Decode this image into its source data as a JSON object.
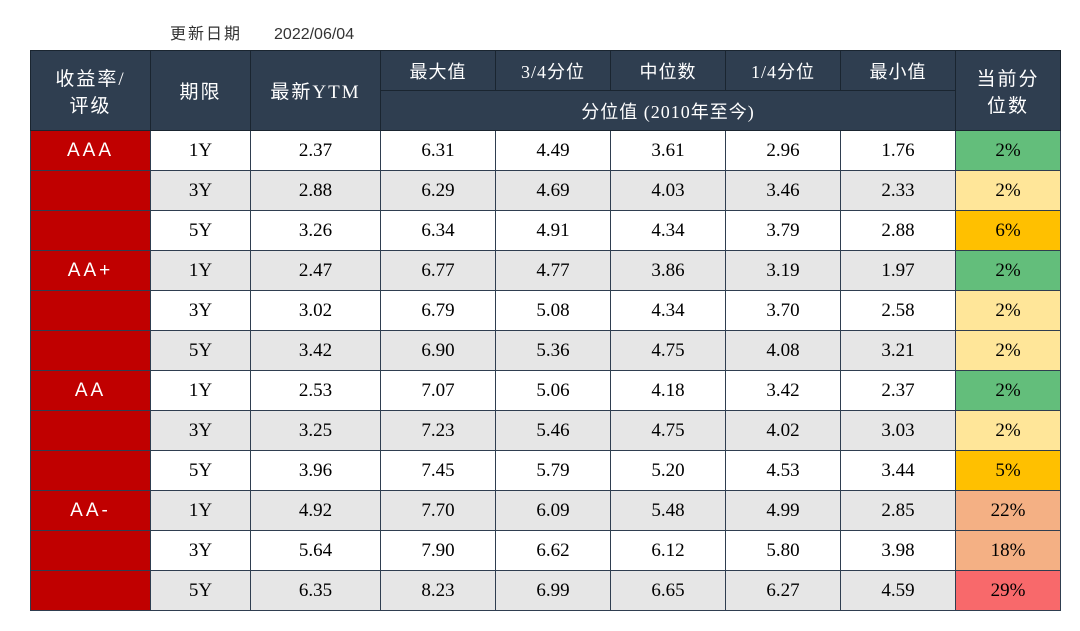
{
  "update_label": "更新日期",
  "update_date": "2022/06/04",
  "header": {
    "rating_yield": "收益率/\n评级",
    "term": "期限",
    "ytm": "最新YTM",
    "max": "最大值",
    "q3": "3/4分位",
    "median": "中位数",
    "q1": "1/4分位",
    "min": "最小值",
    "current_pct": "当前分\n位数",
    "quantile_range": "分位值 (2010年至今)"
  },
  "colors": {
    "header_bg": "#2f3e50",
    "header_fg": "#ffffff",
    "rating_bg": "#c00000",
    "row_white": "#ffffff",
    "row_gray": "#e6e6e6",
    "pct_green": "#63be7b",
    "pct_yellow": "#ffe699",
    "pct_gold": "#ffc000",
    "pct_orange": "#f4b084",
    "pct_red": "#f8696b"
  },
  "rows": [
    {
      "rating": "AAA",
      "show_rating": true,
      "term": "1Y",
      "ytm": "2.37",
      "max": "6.31",
      "q3": "4.49",
      "median": "3.61",
      "q1": "2.96",
      "min": "1.76",
      "pct": "2%",
      "pct_color": "#63be7b",
      "shade": "white"
    },
    {
      "rating": "",
      "show_rating": false,
      "term": "3Y",
      "ytm": "2.88",
      "max": "6.29",
      "q3": "4.69",
      "median": "4.03",
      "q1": "3.46",
      "min": "2.33",
      "pct": "2%",
      "pct_color": "#ffe699",
      "shade": "gray"
    },
    {
      "rating": "",
      "show_rating": false,
      "term": "5Y",
      "ytm": "3.26",
      "max": "6.34",
      "q3": "4.91",
      "median": "4.34",
      "q1": "3.79",
      "min": "2.88",
      "pct": "6%",
      "pct_color": "#ffc000",
      "shade": "white"
    },
    {
      "rating": "AA+",
      "show_rating": true,
      "term": "1Y",
      "ytm": "2.47",
      "max": "6.77",
      "q3": "4.77",
      "median": "3.86",
      "q1": "3.19",
      "min": "1.97",
      "pct": "2%",
      "pct_color": "#63be7b",
      "shade": "gray"
    },
    {
      "rating": "",
      "show_rating": false,
      "term": "3Y",
      "ytm": "3.02",
      "max": "6.79",
      "q3": "5.08",
      "median": "4.34",
      "q1": "3.70",
      "min": "2.58",
      "pct": "2%",
      "pct_color": "#ffe699",
      "shade": "white"
    },
    {
      "rating": "",
      "show_rating": false,
      "term": "5Y",
      "ytm": "3.42",
      "max": "6.90",
      "q3": "5.36",
      "median": "4.75",
      "q1": "4.08",
      "min": "3.21",
      "pct": "2%",
      "pct_color": "#ffe699",
      "shade": "gray"
    },
    {
      "rating": "AA",
      "show_rating": true,
      "term": "1Y",
      "ytm": "2.53",
      "max": "7.07",
      "q3": "5.06",
      "median": "4.18",
      "q1": "3.42",
      "min": "2.37",
      "pct": "2%",
      "pct_color": "#63be7b",
      "shade": "white"
    },
    {
      "rating": "",
      "show_rating": false,
      "term": "3Y",
      "ytm": "3.25",
      "max": "7.23",
      "q3": "5.46",
      "median": "4.75",
      "q1": "4.02",
      "min": "3.03",
      "pct": "2%",
      "pct_color": "#ffe699",
      "shade": "gray"
    },
    {
      "rating": "",
      "show_rating": false,
      "term": "5Y",
      "ytm": "3.96",
      "max": "7.45",
      "q3": "5.79",
      "median": "5.20",
      "q1": "4.53",
      "min": "3.44",
      "pct": "5%",
      "pct_color": "#ffc000",
      "shade": "white"
    },
    {
      "rating": "AA-",
      "show_rating": true,
      "term": "1Y",
      "ytm": "4.92",
      "max": "7.70",
      "q3": "6.09",
      "median": "5.48",
      "q1": "4.99",
      "min": "2.85",
      "pct": "22%",
      "pct_color": "#f4b084",
      "shade": "gray"
    },
    {
      "rating": "",
      "show_rating": false,
      "term": "3Y",
      "ytm": "5.64",
      "max": "7.90",
      "q3": "6.62",
      "median": "6.12",
      "q1": "5.80",
      "min": "3.98",
      "pct": "18%",
      "pct_color": "#f4b084",
      "shade": "white"
    },
    {
      "rating": "",
      "show_rating": false,
      "term": "5Y",
      "ytm": "6.35",
      "max": "8.23",
      "q3": "6.99",
      "median": "6.65",
      "q1": "6.27",
      "min": "4.59",
      "pct": "29%",
      "pct_color": "#f8696b",
      "shade": "gray"
    }
  ]
}
